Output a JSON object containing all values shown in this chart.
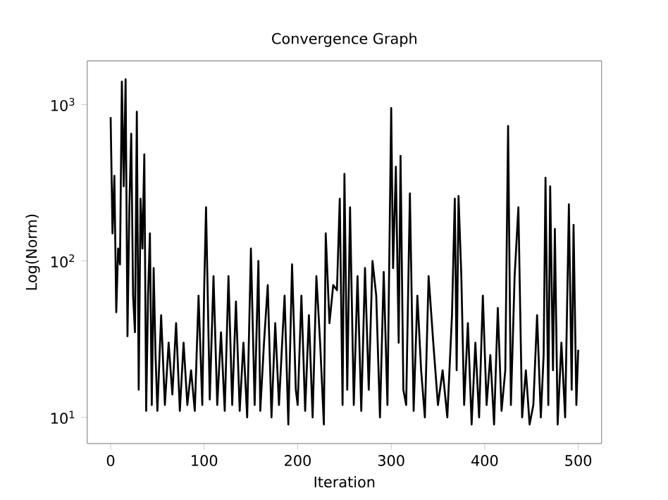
{
  "chart_data": {
    "type": "line",
    "title": "Convergence Graph",
    "xlabel": "Iteration",
    "ylabel": "Log(Norm)",
    "log": "y",
    "xlim": [
      -25,
      525
    ],
    "ylim": [
      6.8,
      1900
    ],
    "xticks": [
      0,
      100,
      200,
      300,
      400,
      500
    ],
    "yticks": [
      {
        "value": 10,
        "label": "10$^{1}$"
      },
      {
        "value": 100,
        "label": "10$^{2}$"
      },
      {
        "value": 1000,
        "label": "10$^{3}$"
      }
    ],
    "marker": "none",
    "line_style": "solid",
    "series": [
      {
        "color": "#000000",
        "x": [
          0,
          2,
          4,
          6,
          8,
          10,
          12,
          14,
          16,
          18,
          20,
          22,
          24,
          26,
          28,
          30,
          32,
          34,
          36,
          38,
          40,
          42,
          44,
          46,
          48,
          50,
          54,
          58,
          62,
          66,
          70,
          74,
          78,
          82,
          86,
          90,
          94,
          98,
          100,
          102,
          106,
          110,
          114,
          118,
          122,
          126,
          130,
          134,
          138,
          142,
          146,
          150,
          154,
          158,
          160,
          164,
          168,
          172,
          176,
          180,
          186,
          190,
          194,
          198,
          200,
          204,
          208,
          212,
          216,
          220,
          224,
          228,
          230,
          234,
          238,
          242,
          245,
          248,
          250,
          253,
          256,
          260,
          264,
          268,
          272,
          276,
          280,
          284,
          288,
          292,
          296,
          300,
          302,
          305,
          308,
          310,
          313,
          316,
          320,
          324,
          328,
          332,
          336,
          340,
          345,
          350,
          355,
          360,
          365,
          368,
          370,
          372,
          375,
          378,
          382,
          386,
          390,
          394,
          398,
          402,
          406,
          410,
          414,
          418,
          422,
          425,
          428,
          432,
          436,
          440,
          444,
          448,
          452,
          456,
          460,
          463,
          465,
          468,
          470,
          473,
          475,
          478,
          482,
          486,
          490,
          493,
          495,
          498,
          500
        ],
        "values": [
          830,
          150,
          350,
          47,
          120,
          95,
          1400,
          300,
          1450,
          33,
          220,
          650,
          60,
          35,
          900,
          15,
          250,
          120,
          480,
          11,
          60,
          150,
          12,
          90,
          25,
          11,
          45,
          12,
          30,
          14,
          40,
          11,
          30,
          12,
          20,
          11,
          60,
          12,
          65,
          220,
          13,
          80,
          12,
          35,
          11,
          80,
          12,
          55,
          11,
          30,
          10,
          120,
          12,
          100,
          11,
          30,
          70,
          10,
          40,
          12,
          60,
          9,
          95,
          15,
          12,
          60,
          11,
          45,
          10,
          80,
          30,
          9,
          150,
          40,
          70,
          65,
          250,
          12,
          360,
          15,
          220,
          12,
          80,
          11,
          90,
          15,
          100,
          60,
          10,
          85,
          12,
          950,
          90,
          400,
          30,
          470,
          15,
          12,
          270,
          11,
          60,
          20,
          10,
          80,
          30,
          12,
          20,
          10,
          45,
          250,
          20,
          260,
          80,
          12,
          40,
          9,
          30,
          10,
          60,
          12,
          25,
          9,
          50,
          11,
          20,
          730,
          12,
          80,
          220,
          10,
          20,
          9,
          12,
          45,
          10,
          25,
          340,
          12,
          300,
          20,
          160,
          9,
          30,
          10,
          230,
          15,
          170,
          12,
          27
        ]
      }
    ]
  }
}
